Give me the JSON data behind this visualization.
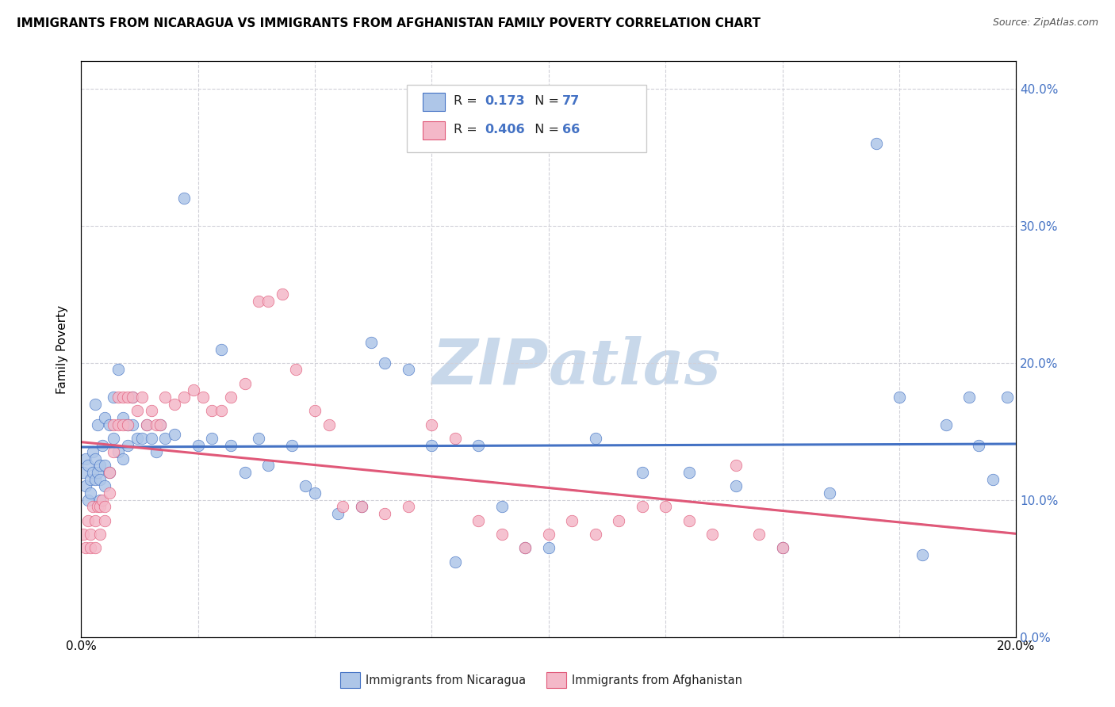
{
  "title": "IMMIGRANTS FROM NICARAGUA VS IMMIGRANTS FROM AFGHANISTAN FAMILY POVERTY CORRELATION CHART",
  "source": "Source: ZipAtlas.com",
  "ylabel": "Family Poverty",
  "legend_label_blue": "Immigrants from Nicaragua",
  "legend_label_pink": "Immigrants from Afghanistan",
  "R_blue": "0.173",
  "N_blue": "77",
  "R_pink": "0.406",
  "N_pink": "66",
  "blue_color": "#aec6e8",
  "pink_color": "#f4b8c8",
  "blue_line_color": "#4472c4",
  "pink_line_color": "#e05878",
  "watermark_color": "#c8d8ea",
  "xlim": [
    0.0,
    0.2
  ],
  "ylim": [
    0.0,
    0.42
  ],
  "blue_scatter_x": [
    0.0005,
    0.001,
    0.001,
    0.0015,
    0.0015,
    0.002,
    0.002,
    0.0025,
    0.0025,
    0.003,
    0.003,
    0.003,
    0.0035,
    0.0035,
    0.004,
    0.004,
    0.004,
    0.0045,
    0.005,
    0.005,
    0.005,
    0.006,
    0.006,
    0.007,
    0.007,
    0.008,
    0.008,
    0.009,
    0.009,
    0.01,
    0.01,
    0.011,
    0.011,
    0.012,
    0.013,
    0.014,
    0.015,
    0.016,
    0.017,
    0.018,
    0.02,
    0.022,
    0.025,
    0.028,
    0.03,
    0.032,
    0.035,
    0.038,
    0.04,
    0.045,
    0.048,
    0.05,
    0.055,
    0.06,
    0.062,
    0.065,
    0.07,
    0.075,
    0.08,
    0.085,
    0.09,
    0.095,
    0.1,
    0.11,
    0.12,
    0.13,
    0.14,
    0.15,
    0.16,
    0.17,
    0.175,
    0.18,
    0.185,
    0.19,
    0.192,
    0.195,
    0.198
  ],
  "blue_scatter_y": [
    0.12,
    0.13,
    0.11,
    0.125,
    0.1,
    0.115,
    0.105,
    0.135,
    0.12,
    0.13,
    0.17,
    0.115,
    0.155,
    0.12,
    0.125,
    0.115,
    0.1,
    0.14,
    0.16,
    0.125,
    0.11,
    0.155,
    0.12,
    0.175,
    0.145,
    0.135,
    0.195,
    0.16,
    0.13,
    0.155,
    0.14,
    0.175,
    0.155,
    0.145,
    0.145,
    0.155,
    0.145,
    0.135,
    0.155,
    0.145,
    0.148,
    0.32,
    0.14,
    0.145,
    0.21,
    0.14,
    0.12,
    0.145,
    0.125,
    0.14,
    0.11,
    0.105,
    0.09,
    0.095,
    0.215,
    0.2,
    0.195,
    0.14,
    0.055,
    0.14,
    0.095,
    0.065,
    0.065,
    0.145,
    0.12,
    0.12,
    0.11,
    0.065,
    0.105,
    0.36,
    0.175,
    0.06,
    0.155,
    0.175,
    0.14,
    0.115,
    0.175
  ],
  "pink_scatter_x": [
    0.0005,
    0.001,
    0.0015,
    0.002,
    0.002,
    0.0025,
    0.003,
    0.003,
    0.0035,
    0.004,
    0.004,
    0.0045,
    0.005,
    0.005,
    0.006,
    0.006,
    0.007,
    0.007,
    0.008,
    0.008,
    0.009,
    0.009,
    0.01,
    0.01,
    0.011,
    0.012,
    0.013,
    0.014,
    0.015,
    0.016,
    0.017,
    0.018,
    0.02,
    0.022,
    0.024,
    0.026,
    0.028,
    0.03,
    0.032,
    0.035,
    0.038,
    0.04,
    0.043,
    0.046,
    0.05,
    0.053,
    0.056,
    0.06,
    0.065,
    0.07,
    0.075,
    0.08,
    0.085,
    0.09,
    0.095,
    0.1,
    0.105,
    0.11,
    0.115,
    0.12,
    0.125,
    0.13,
    0.135,
    0.14,
    0.145,
    0.15
  ],
  "pink_scatter_y": [
    0.075,
    0.065,
    0.085,
    0.075,
    0.065,
    0.095,
    0.085,
    0.065,
    0.095,
    0.095,
    0.075,
    0.1,
    0.095,
    0.085,
    0.105,
    0.12,
    0.155,
    0.135,
    0.175,
    0.155,
    0.175,
    0.155,
    0.175,
    0.155,
    0.175,
    0.165,
    0.175,
    0.155,
    0.165,
    0.155,
    0.155,
    0.175,
    0.17,
    0.175,
    0.18,
    0.175,
    0.165,
    0.165,
    0.175,
    0.185,
    0.245,
    0.245,
    0.25,
    0.195,
    0.165,
    0.155,
    0.095,
    0.095,
    0.09,
    0.095,
    0.155,
    0.145,
    0.085,
    0.075,
    0.065,
    0.075,
    0.085,
    0.075,
    0.085,
    0.095,
    0.095,
    0.085,
    0.075,
    0.125,
    0.075,
    0.065
  ]
}
